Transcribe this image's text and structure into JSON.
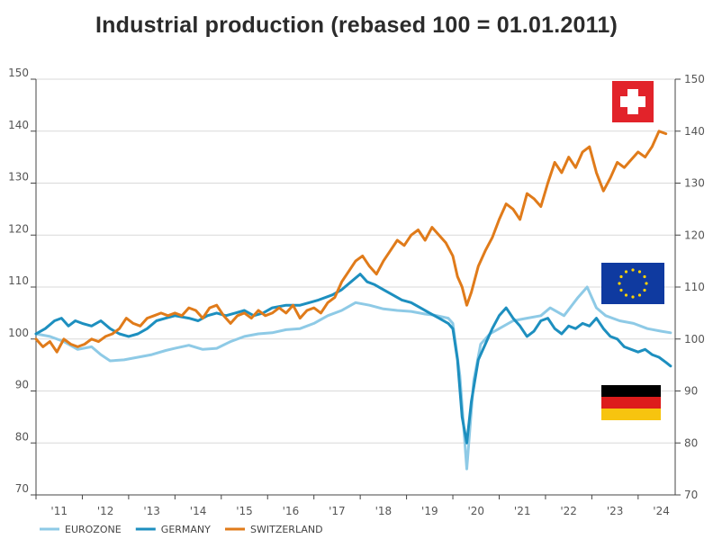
{
  "chart_data": {
    "type": "line",
    "title": "Industrial production (rebased 100 = 01.01.2011)",
    "xlabel": "",
    "ylabel": "",
    "ylim": [
      70,
      150
    ],
    "yticks": [
      70,
      80,
      90,
      100,
      110,
      120,
      130,
      140,
      150
    ],
    "xlim": [
      2011,
      2024.8
    ],
    "xtick_labels": [
      "'11",
      "'12",
      "'13",
      "'14",
      "'15",
      "'16",
      "'17",
      "'18",
      "'19",
      "'20",
      "'21",
      "'22",
      "'23",
      "'24"
    ],
    "grid": true,
    "legend_position": "bottom-left",
    "series": [
      {
        "name": "EUROZONE",
        "color": "#8ecae6",
        "points": [
          [
            2011.0,
            101
          ],
          [
            2011.3,
            100.5
          ],
          [
            2011.6,
            99.5
          ],
          [
            2011.9,
            98
          ],
          [
            2012.2,
            98.5
          ],
          [
            2012.4,
            97
          ],
          [
            2012.6,
            95.8
          ],
          [
            2012.9,
            96
          ],
          [
            2013.2,
            96.5
          ],
          [
            2013.5,
            97
          ],
          [
            2013.8,
            97.8
          ],
          [
            2014.0,
            98.2
          ],
          [
            2014.3,
            98.8
          ],
          [
            2014.6,
            98
          ],
          [
            2014.9,
            98.2
          ],
          [
            2015.2,
            99.5
          ],
          [
            2015.5,
            100.5
          ],
          [
            2015.8,
            101
          ],
          [
            2016.1,
            101.2
          ],
          [
            2016.4,
            101.8
          ],
          [
            2016.7,
            102
          ],
          [
            2017.0,
            103
          ],
          [
            2017.3,
            104.5
          ],
          [
            2017.6,
            105.5
          ],
          [
            2017.9,
            107
          ],
          [
            2018.2,
            106.5
          ],
          [
            2018.5,
            105.8
          ],
          [
            2018.8,
            105.5
          ],
          [
            2019.1,
            105.3
          ],
          [
            2019.4,
            104.8
          ],
          [
            2019.6,
            104.6
          ],
          [
            2019.9,
            104
          ],
          [
            2020.0,
            103
          ],
          [
            2020.15,
            93
          ],
          [
            2020.3,
            75
          ],
          [
            2020.45,
            92
          ],
          [
            2020.6,
            99
          ],
          [
            2020.8,
            101
          ],
          [
            2021.0,
            102
          ],
          [
            2021.3,
            103.5
          ],
          [
            2021.6,
            104
          ],
          [
            2021.9,
            104.5
          ],
          [
            2022.1,
            106
          ],
          [
            2022.4,
            104.5
          ],
          [
            2022.7,
            108
          ],
          [
            2022.9,
            110
          ],
          [
            2023.1,
            106
          ],
          [
            2023.3,
            104.5
          ],
          [
            2023.6,
            103.5
          ],
          [
            2023.9,
            103
          ],
          [
            2024.2,
            102
          ],
          [
            2024.5,
            101.5
          ],
          [
            2024.7,
            101.2
          ]
        ]
      },
      {
        "name": "GERMANY",
        "color": "#1d8fbf",
        "points": [
          [
            2011.0,
            101
          ],
          [
            2011.2,
            102
          ],
          [
            2011.4,
            103.5
          ],
          [
            2011.55,
            104
          ],
          [
            2011.7,
            102.5
          ],
          [
            2011.85,
            103.5
          ],
          [
            2012.0,
            103
          ],
          [
            2012.2,
            102.5
          ],
          [
            2012.4,
            103.5
          ],
          [
            2012.6,
            102
          ],
          [
            2012.8,
            101
          ],
          [
            2013.0,
            100.5
          ],
          [
            2013.2,
            101
          ],
          [
            2013.4,
            102
          ],
          [
            2013.6,
            103.5
          ],
          [
            2013.8,
            104
          ],
          [
            2014.0,
            104.5
          ],
          [
            2014.3,
            104
          ],
          [
            2014.5,
            103.5
          ],
          [
            2014.7,
            104.5
          ],
          [
            2014.9,
            105
          ],
          [
            2015.1,
            104.5
          ],
          [
            2015.3,
            105
          ],
          [
            2015.5,
            105.5
          ],
          [
            2015.7,
            104.5
          ],
          [
            2015.9,
            105
          ],
          [
            2016.1,
            106
          ],
          [
            2016.4,
            106.5
          ],
          [
            2016.7,
            106.5
          ],
          [
            2016.9,
            107
          ],
          [
            2017.1,
            107.5
          ],
          [
            2017.4,
            108.5
          ],
          [
            2017.6,
            109.5
          ],
          [
            2017.8,
            111
          ],
          [
            2018.0,
            112.5
          ],
          [
            2018.15,
            111
          ],
          [
            2018.3,
            110.5
          ],
          [
            2018.5,
            109.5
          ],
          [
            2018.7,
            108.5
          ],
          [
            2018.9,
            107.5
          ],
          [
            2019.1,
            107
          ],
          [
            2019.3,
            106
          ],
          [
            2019.5,
            105
          ],
          [
            2019.7,
            104
          ],
          [
            2019.9,
            103
          ],
          [
            2020.0,
            102
          ],
          [
            2020.1,
            96
          ],
          [
            2020.2,
            85
          ],
          [
            2020.3,
            80
          ],
          [
            2020.4,
            88
          ],
          [
            2020.55,
            96
          ],
          [
            2020.7,
            99
          ],
          [
            2020.85,
            102
          ],
          [
            2021.0,
            104.5
          ],
          [
            2021.15,
            106
          ],
          [
            2021.3,
            104
          ],
          [
            2021.45,
            102.5
          ],
          [
            2021.6,
            100.5
          ],
          [
            2021.75,
            101.5
          ],
          [
            2021.9,
            103.5
          ],
          [
            2022.05,
            104
          ],
          [
            2022.2,
            102
          ],
          [
            2022.35,
            101
          ],
          [
            2022.5,
            102.5
          ],
          [
            2022.65,
            102
          ],
          [
            2022.8,
            103
          ],
          [
            2022.95,
            102.5
          ],
          [
            2023.1,
            104
          ],
          [
            2023.25,
            102
          ],
          [
            2023.4,
            100.5
          ],
          [
            2023.55,
            100
          ],
          [
            2023.7,
            98.5
          ],
          [
            2023.85,
            98
          ],
          [
            2024.0,
            97.5
          ],
          [
            2024.15,
            98
          ],
          [
            2024.3,
            97
          ],
          [
            2024.45,
            96.5
          ],
          [
            2024.6,
            95.5
          ],
          [
            2024.7,
            94.8
          ]
        ]
      },
      {
        "name": "SWITZERLAND",
        "color": "#e07b1a",
        "points": [
          [
            2011.0,
            100
          ],
          [
            2011.15,
            98.5
          ],
          [
            2011.3,
            99.5
          ],
          [
            2011.45,
            97.5
          ],
          [
            2011.6,
            100
          ],
          [
            2011.75,
            99
          ],
          [
            2011.9,
            98.5
          ],
          [
            2012.05,
            99
          ],
          [
            2012.2,
            100
          ],
          [
            2012.35,
            99.5
          ],
          [
            2012.5,
            100.5
          ],
          [
            2012.65,
            101
          ],
          [
            2012.8,
            102
          ],
          [
            2012.95,
            104
          ],
          [
            2013.1,
            103
          ],
          [
            2013.25,
            102.5
          ],
          [
            2013.4,
            104
          ],
          [
            2013.55,
            104.5
          ],
          [
            2013.7,
            105
          ],
          [
            2013.85,
            104.5
          ],
          [
            2014.0,
            105
          ],
          [
            2014.15,
            104.5
          ],
          [
            2014.3,
            106
          ],
          [
            2014.45,
            105.5
          ],
          [
            2014.6,
            104
          ],
          [
            2014.75,
            106
          ],
          [
            2014.9,
            106.5
          ],
          [
            2015.05,
            104.5
          ],
          [
            2015.2,
            103
          ],
          [
            2015.35,
            104.5
          ],
          [
            2015.5,
            105
          ],
          [
            2015.65,
            104
          ],
          [
            2015.8,
            105.5
          ],
          [
            2015.95,
            104.5
          ],
          [
            2016.1,
            105
          ],
          [
            2016.25,
            106
          ],
          [
            2016.4,
            105
          ],
          [
            2016.55,
            106.5
          ],
          [
            2016.7,
            104
          ],
          [
            2016.85,
            105.5
          ],
          [
            2017.0,
            106
          ],
          [
            2017.15,
            105
          ],
          [
            2017.3,
            107
          ],
          [
            2017.45,
            108
          ],
          [
            2017.6,
            111
          ],
          [
            2017.75,
            113
          ],
          [
            2017.9,
            115
          ],
          [
            2018.05,
            116
          ],
          [
            2018.2,
            114
          ],
          [
            2018.35,
            112.5
          ],
          [
            2018.5,
            115
          ],
          [
            2018.65,
            117
          ],
          [
            2018.8,
            119
          ],
          [
            2018.95,
            118
          ],
          [
            2019.1,
            120
          ],
          [
            2019.25,
            121
          ],
          [
            2019.4,
            119
          ],
          [
            2019.55,
            121.5
          ],
          [
            2019.7,
            120
          ],
          [
            2019.85,
            118.5
          ],
          [
            2020.0,
            116
          ],
          [
            2020.1,
            112
          ],
          [
            2020.2,
            110
          ],
          [
            2020.3,
            106.5
          ],
          [
            2020.4,
            109
          ],
          [
            2020.55,
            114
          ],
          [
            2020.7,
            117
          ],
          [
            2020.85,
            119.5
          ],
          [
            2021.0,
            123
          ],
          [
            2021.15,
            126
          ],
          [
            2021.3,
            125
          ],
          [
            2021.45,
            123
          ],
          [
            2021.6,
            128
          ],
          [
            2021.75,
            127
          ],
          [
            2021.9,
            125.5
          ],
          [
            2022.05,
            130
          ],
          [
            2022.2,
            134
          ],
          [
            2022.35,
            132
          ],
          [
            2022.5,
            135
          ],
          [
            2022.65,
            133
          ],
          [
            2022.8,
            136
          ],
          [
            2022.95,
            137
          ],
          [
            2023.1,
            132
          ],
          [
            2023.25,
            128.5
          ],
          [
            2023.4,
            131
          ],
          [
            2023.55,
            134
          ],
          [
            2023.7,
            133
          ],
          [
            2023.85,
            134.5
          ],
          [
            2024.0,
            136
          ],
          [
            2024.15,
            135
          ],
          [
            2024.3,
            137
          ],
          [
            2024.45,
            140
          ],
          [
            2024.6,
            139.5
          ]
        ]
      }
    ],
    "flags": [
      {
        "country": "Switzerland",
        "level": 141.5
      },
      {
        "country": "European Union",
        "level": 111
      },
      {
        "country": "Germany",
        "level": 90
      }
    ]
  }
}
